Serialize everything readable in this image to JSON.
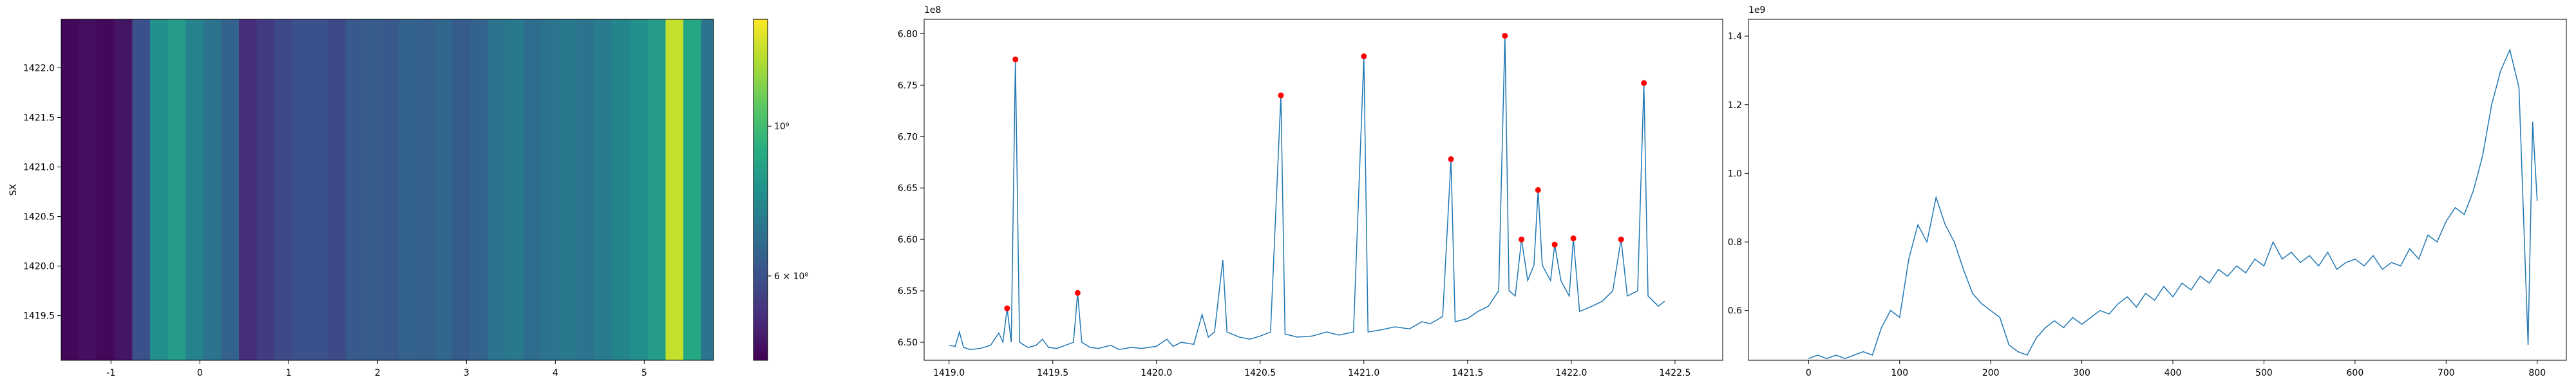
{
  "chart_data": [
    {
      "type": "heatmap",
      "ylabel": "SX",
      "colormap": "viridis",
      "color_scale": "log",
      "xlim": [
        -1.56,
        5.78
      ],
      "ylim": [
        1419.05,
        1422.49
      ],
      "xticks": [
        -1,
        0,
        1,
        2,
        3,
        4,
        5
      ],
      "yticks": [
        1419.5,
        {
          "value": 1420.0,
          "label": "1420.0"
        },
        1420.5,
        {
          "value": 1421.0,
          "label": "1421.0"
        },
        1421.5,
        {
          "value": 1422.0,
          "label": "1422.0"
        }
      ],
      "xbins": [
        -1.56,
        -1.36,
        -1.16,
        -0.96,
        -0.76,
        -0.56,
        -0.36,
        -0.16,
        0.04,
        0.24,
        0.44,
        0.64,
        0.84,
        1.04,
        1.24,
        1.44,
        1.64,
        1.84,
        2.04,
        2.24,
        2.44,
        2.64,
        2.84,
        3.04,
        3.24,
        3.44,
        3.64,
        3.84,
        4.04,
        4.24,
        4.44,
        4.64,
        4.84,
        5.04,
        5.24,
        5.44,
        5.64,
        5.78
      ],
      "values": [
        460000000,
        470000000,
        460000000,
        480000000,
        600000000,
        800000000,
        850000000,
        750000000,
        700000000,
        650000000,
        520000000,
        550000000,
        580000000,
        600000000,
        600000000,
        580000000,
        620000000,
        630000000,
        620000000,
        650000000,
        640000000,
        660000000,
        630000000,
        650000000,
        700000000,
        720000000,
        680000000,
        700000000,
        720000000,
        700000000,
        730000000,
        760000000,
        800000000,
        850000000,
        1300000000,
        900000000,
        700000000
      ],
      "clim": [
        450000000,
        1440000000
      ],
      "cticks": [
        {
          "value": 600000000,
          "label": "6 × 10⁸"
        },
        {
          "value": 1000000000,
          "label": "10⁹"
        }
      ]
    },
    {
      "type": "line",
      "offset_label": "1e8",
      "xlim": [
        1418.88,
        1422.73
      ],
      "ylim": [
        6.4825,
        6.814
      ],
      "xticks": [
        {
          "value": 1419.0,
          "label": "1419.0"
        },
        1419.5,
        {
          "value": 1420.0,
          "label": "1420.0"
        },
        1420.5,
        {
          "value": 1421.0,
          "label": "1421.0"
        },
        1421.5,
        {
          "value": 1422.0,
          "label": "1422.0"
        },
        1422.5
      ],
      "yticks": [
        {
          "value": 6.5,
          "label": "6.50"
        },
        6.55,
        {
          "value": 6.6,
          "label": "6.60"
        },
        6.65,
        {
          "value": 6.7,
          "label": "6.70"
        },
        6.75,
        {
          "value": 6.8,
          "label": "6.80"
        }
      ],
      "series": [
        {
          "kind": "line",
          "color": "#1f77b4",
          "x": [
            1419.0,
            1419.03,
            1419.05,
            1419.07,
            1419.1,
            1419.15,
            1419.2,
            1419.24,
            1419.26,
            1419.28,
            1419.3,
            1419.32,
            1419.34,
            1419.38,
            1419.42,
            1419.45,
            1419.48,
            1419.52,
            1419.56,
            1419.6,
            1419.62,
            1419.64,
            1419.68,
            1419.72,
            1419.78,
            1419.82,
            1419.88,
            1419.93,
            1420.0,
            1420.05,
            1420.08,
            1420.12,
            1420.18,
            1420.22,
            1420.25,
            1420.28,
            1420.32,
            1420.34,
            1420.4,
            1420.45,
            1420.5,
            1420.55,
            1420.6,
            1420.62,
            1420.68,
            1420.75,
            1420.82,
            1420.88,
            1420.95,
            1421.0,
            1421.02,
            1421.08,
            1421.15,
            1421.22,
            1421.28,
            1421.32,
            1421.38,
            1421.42,
            1421.44,
            1421.5,
            1421.55,
            1421.6,
            1421.65,
            1421.68,
            1421.7,
            1421.73,
            1421.76,
            1421.79,
            1421.82,
            1421.84,
            1421.86,
            1421.9,
            1421.92,
            1421.95,
            1421.99,
            1422.01,
            1422.04,
            1422.1,
            1422.15,
            1422.2,
            1422.24,
            1422.27,
            1422.32,
            1422.35,
            1422.37,
            1422.42,
            1422.45
          ],
          "values": [
            6.497,
            6.496,
            6.51,
            6.495,
            6.493,
            6.494,
            6.497,
            6.509,
            6.5,
            6.533,
            6.5,
            6.775,
            6.5,
            6.495,
            6.497,
            6.503,
            6.495,
            6.494,
            6.497,
            6.5,
            6.548,
            6.5,
            6.495,
            6.494,
            6.497,
            6.493,
            6.495,
            6.494,
            6.496,
            6.503,
            6.496,
            6.5,
            6.498,
            6.527,
            6.505,
            6.51,
            6.58,
            6.51,
            6.505,
            6.503,
            6.506,
            6.51,
            6.74,
            6.508,
            6.505,
            6.506,
            6.51,
            6.507,
            6.51,
            6.778,
            6.51,
            6.512,
            6.515,
            6.513,
            6.52,
            6.518,
            6.525,
            6.678,
            6.52,
            6.523,
            6.53,
            6.535,
            6.55,
            6.798,
            6.55,
            6.545,
            6.6,
            6.56,
            6.575,
            6.648,
            6.575,
            6.56,
            6.595,
            6.56,
            6.545,
            6.601,
            6.53,
            6.535,
            6.54,
            6.55,
            6.6,
            6.545,
            6.55,
            6.752,
            6.545,
            6.535,
            6.54
          ]
        },
        {
          "kind": "points",
          "color": "#ff0000",
          "x": [
            1419.28,
            1419.32,
            1419.62,
            1420.6,
            1421.0,
            1421.42,
            1421.68,
            1421.76,
            1421.84,
            1421.92,
            1422.01,
            1422.24,
            1422.35
          ],
          "values": [
            6.533,
            6.775,
            6.548,
            6.74,
            6.778,
            6.678,
            6.798,
            6.6,
            6.648,
            6.595,
            6.601,
            6.6,
            6.752
          ]
        }
      ]
    },
    {
      "type": "line",
      "offset_label": "1e9",
      "xlim": [
        -66,
        832
      ],
      "ylim": [
        0.455,
        1.449
      ],
      "xticks": [
        0,
        100,
        200,
        300,
        400,
        500,
        600,
        700,
        800
      ],
      "yticks": [
        0.6,
        0.8,
        {
          "value": 1.0,
          "label": "1.0"
        },
        1.2,
        1.4
      ],
      "series": [
        {
          "kind": "line",
          "color": "#1f77b4",
          "x": [
            0,
            10,
            20,
            30,
            40,
            50,
            60,
            70,
            80,
            90,
            100,
            110,
            120,
            130,
            140,
            150,
            160,
            170,
            180,
            190,
            200,
            210,
            220,
            230,
            240,
            250,
            260,
            270,
            280,
            290,
            300,
            310,
            320,
            330,
            340,
            350,
            360,
            370,
            380,
            390,
            400,
            410,
            420,
            430,
            440,
            450,
            460,
            470,
            480,
            490,
            500,
            510,
            520,
            530,
            540,
            550,
            560,
            570,
            580,
            590,
            600,
            610,
            620,
            630,
            640,
            650,
            660,
            670,
            680,
            690,
            700,
            710,
            720,
            730,
            740,
            750,
            760,
            770,
            780,
            790,
            795,
            800
          ],
          "values": [
            0.46,
            0.47,
            0.46,
            0.47,
            0.46,
            0.47,
            0.48,
            0.47,
            0.55,
            0.6,
            0.58,
            0.75,
            0.85,
            0.8,
            0.93,
            0.85,
            0.8,
            0.72,
            0.65,
            0.62,
            0.6,
            0.58,
            0.5,
            0.48,
            0.47,
            0.52,
            0.55,
            0.57,
            0.55,
            0.58,
            0.56,
            0.58,
            0.6,
            0.59,
            0.62,
            0.64,
            0.61,
            0.65,
            0.63,
            0.67,
            0.64,
            0.68,
            0.66,
            0.7,
            0.68,
            0.72,
            0.7,
            0.73,
            0.71,
            0.75,
            0.73,
            0.8,
            0.75,
            0.77,
            0.74,
            0.76,
            0.73,
            0.77,
            0.72,
            0.74,
            0.75,
            0.73,
            0.76,
            0.72,
            0.74,
            0.73,
            0.78,
            0.75,
            0.82,
            0.8,
            0.86,
            0.9,
            0.88,
            0.95,
            1.05,
            1.2,
            1.3,
            1.36,
            1.25,
            0.5,
            1.15,
            0.92
          ]
        }
      ]
    }
  ]
}
